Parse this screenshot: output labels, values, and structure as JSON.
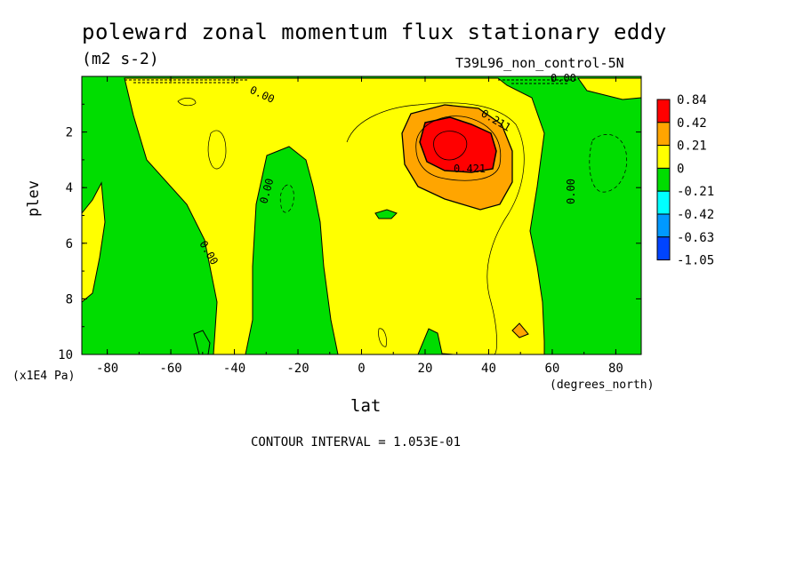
{
  "chart_data": {
    "type": "heatmap",
    "title": "poleward zonal momentum flux stationary eddy",
    "units": "(m2 s-2)",
    "experiment": "T39L96_non_control-5N",
    "xlabel": "lat",
    "x_unit_label": "(degrees_north)",
    "ylabel": "plev",
    "y_unit_label": "(x1E4 Pa)",
    "x_ticks": [
      "-80",
      "-60",
      "-40",
      "-20",
      "0",
      "20",
      "40",
      "60",
      "80"
    ],
    "y_ticks": [
      "2",
      "4",
      "6",
      "8",
      "10"
    ],
    "xlim": [
      -88,
      88
    ],
    "ylim": [
      10,
      0
    ],
    "contour_interval_text": "CONTOUR INTERVAL = 1.053E-01",
    "contour_labels": [
      "0.00",
      "0.00",
      "0.00",
      "0.00",
      "0.00",
      "0.211",
      "0.421"
    ],
    "colorbar": {
      "levels": [
        "0.84",
        "0.42",
        "0.21",
        "0",
        "-0.21",
        "-0.42",
        "-0.63",
        "-1.05"
      ],
      "colors": [
        "#ff0000",
        "#ffa500",
        "#ffff00",
        "#00dd00",
        "#00ffff",
        "#0099ff",
        "#0044ff"
      ]
    }
  }
}
